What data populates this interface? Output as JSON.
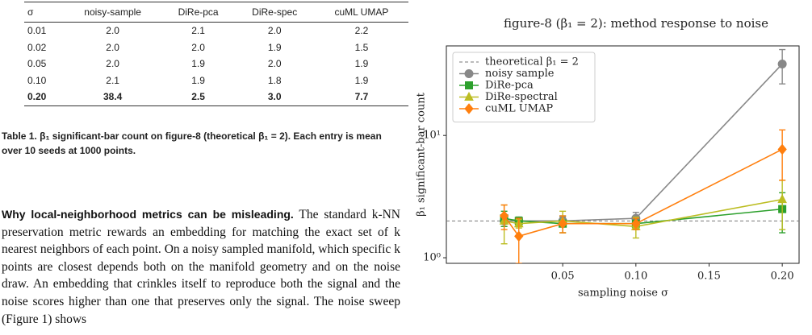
{
  "table": {
    "header": [
      "σ",
      "noisy-sample",
      "DiRe-pca",
      "DiRe-spec",
      "cuML UMAP"
    ],
    "rows": [
      [
        "0.01",
        "2.0",
        "2.1",
        "2.0",
        "2.2"
      ],
      [
        "0.02",
        "2.0",
        "2.0",
        "1.9",
        "1.5"
      ],
      [
        "0.05",
        "2.0",
        "1.9",
        "2.0",
        "1.9"
      ],
      [
        "0.10",
        "2.1",
        "1.9",
        "1.8",
        "1.9"
      ],
      [
        "0.20",
        "38.4",
        "2.5",
        "3.0",
        "7.7"
      ]
    ],
    "caption": "Table 1. β₁ significant-bar count on figure-8 (theoretical β₁ = 2). Each entry is mean over 10 seeds at 1000 points."
  },
  "paragraph": {
    "lead": "Why local-neighborhood metrics can be misleading.",
    "text": "The standard k-NN preservation metric rewards an embedding for matching the exact set of k nearest neighbors of each point. On a noisy sampled manifold, which specific k points are closest depends both on the manifold geometry and on the noise draw. An embedding that crinkles itself to reproduce both the signal and the noise scores higher than one that preserves only the signal. The noise sweep (Figure 1) shows"
  },
  "chart_data": {
    "type": "line",
    "title": "figure-8 (β₁ = 2): method response to noise",
    "x_label": "sampling noise σ",
    "y_label": "β₁ significant-bar count",
    "log_y": true,
    "x": [
      0.01,
      0.02,
      0.05,
      0.1,
      0.2
    ],
    "xlim": [
      -0.0295,
      0.2115
    ],
    "xticks": [
      {
        "value": 0.05,
        "label": "0.05"
      },
      {
        "value": 0.1,
        "label": "0.10"
      },
      {
        "value": 0.15,
        "label": "0.15"
      },
      {
        "value": 0.2,
        "label": "0.20"
      }
    ],
    "ylim": [
      0.9,
      54
    ],
    "yticks": [
      {
        "value": 1,
        "label": "10⁰"
      },
      {
        "value": 10,
        "label": "10¹"
      }
    ],
    "reference": {
      "value": 2,
      "label": "theoretical β₁ = 2",
      "color": "#777777"
    },
    "legend": "upper left",
    "series": [
      {
        "name": "noisy sample",
        "color": "#888888",
        "marker": "circle",
        "values": [
          2.0,
          2.0,
          2.0,
          2.1,
          38.4
        ],
        "errors": [
          0.2,
          0.15,
          0.15,
          0.25,
          12
        ]
      },
      {
        "name": "DiRe-pca",
        "color": "#2ca02c",
        "marker": "square",
        "values": [
          2.1,
          2.0,
          1.9,
          1.9,
          2.5
        ],
        "errors": [
          0.3,
          0.15,
          0.3,
          0.2,
          0.9
        ]
      },
      {
        "name": "DiRe-spectral",
        "color": "#bcbd22",
        "marker": "triangle",
        "values": [
          2.0,
          1.9,
          2.0,
          1.8,
          3.0
        ],
        "errors": [
          0.7,
          0.15,
          0.4,
          0.35,
          1.3
        ]
      },
      {
        "name": "cuML UMAP",
        "color": "#ff7f0e",
        "marker": "diamond",
        "values": [
          2.2,
          1.5,
          1.9,
          1.9,
          7.7
        ],
        "errors": [
          0.5,
          0.6,
          0.3,
          0.2,
          3.4
        ]
      }
    ]
  }
}
